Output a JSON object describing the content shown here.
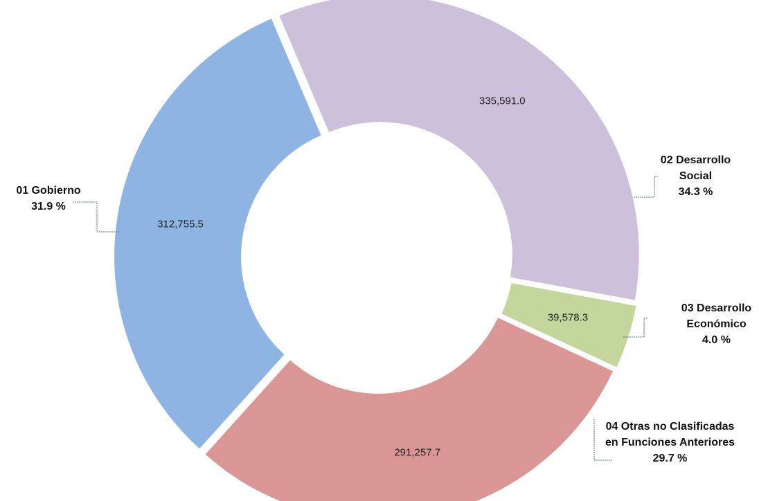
{
  "chart_data": {
    "type": "donut",
    "categories": [
      "01 Gobierno",
      "02 Desarrollo Social",
      "03 Desarrollo Económico",
      "04 Otras no Clasificadas en Funciones Anteriores"
    ],
    "values": [
      312755.5,
      335591.0,
      39578.3,
      291257.7
    ],
    "value_labels": [
      "312,755.5",
      "335,591.0",
      "39,578.3",
      "291,257.7"
    ],
    "percent_labels": [
      "31.9 %",
      "34.3 %",
      "4.0 %",
      "29.7 %"
    ],
    "colors": [
      "#8eb4e3",
      "#ccc0da",
      "#c3d69b",
      "#d99694"
    ]
  }
}
